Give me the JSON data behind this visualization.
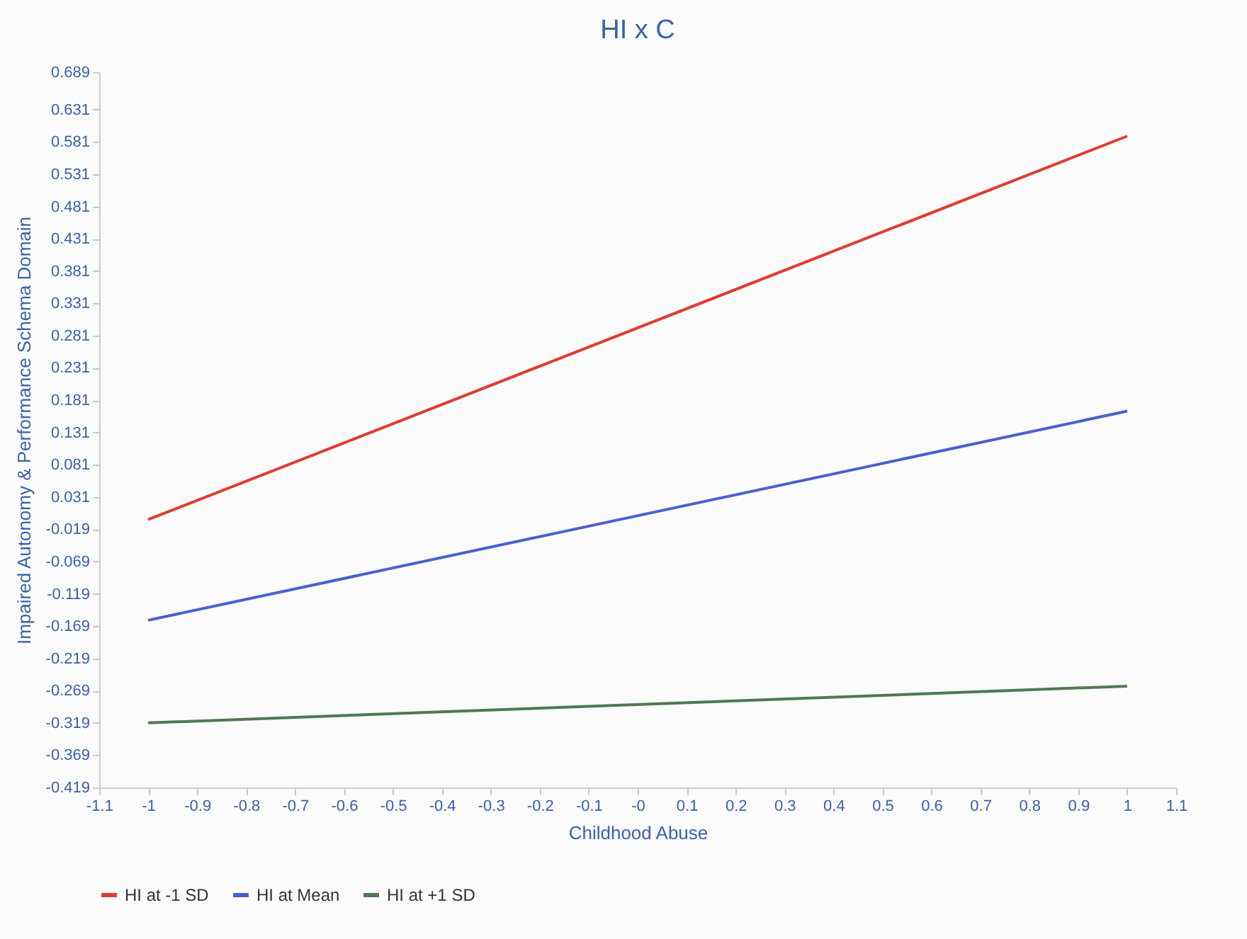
{
  "chart_data": {
    "type": "line",
    "title": "HI x C",
    "xlabel": "Childhood Abuse",
    "ylabel": "Impaired Autonomy & Performance Schema Domain",
    "x": [
      -1,
      1
    ],
    "series": [
      {
        "name": "HI at -1 SD",
        "color": "#e03c31",
        "values": [
          -0.004,
          0.59
        ]
      },
      {
        "name": "HI at Mean",
        "color": "#4a5fd0",
        "values": [
          -0.16,
          0.164
        ]
      },
      {
        "name": "HI at +1 SD",
        "color": "#4e7a50",
        "values": [
          -0.319,
          -0.262
        ]
      }
    ],
    "xlim": [
      -1.1,
      1.1
    ],
    "xticks": [
      -1.1,
      -1,
      -0.9,
      -0.8,
      -0.7,
      -0.6,
      -0.5,
      -0.4,
      -0.3,
      -0.2,
      -0.1,
      {
        "value": 0,
        "label": "-0"
      },
      0.1,
      0.2,
      0.3,
      0.4,
      0.5,
      0.6,
      0.7,
      0.8,
      0.9,
      1,
      1.1
    ],
    "ylim": [
      -0.419,
      0.689
    ],
    "yticks": [
      -0.419,
      -0.369,
      -0.319,
      -0.269,
      -0.219,
      -0.169,
      -0.119,
      -0.069,
      -0.019,
      0.031,
      0.081,
      0.131,
      0.181,
      0.231,
      0.281,
      0.331,
      0.381,
      0.431,
      0.481,
      0.531,
      0.581,
      0.631,
      0.689
    ],
    "grid": false,
    "legend": "bottom",
    "marker": "none",
    "line_style": "solid"
  }
}
